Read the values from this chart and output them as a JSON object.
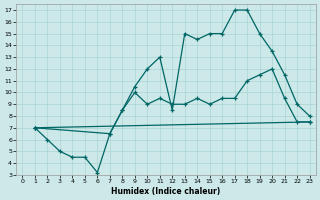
{
  "xlabel": "Humidex (Indice chaleur)",
  "xlim": [
    -0.5,
    23.5
  ],
  "ylim": [
    3,
    17.5
  ],
  "xticks": [
    0,
    1,
    2,
    3,
    4,
    5,
    6,
    7,
    8,
    9,
    10,
    11,
    12,
    13,
    14,
    15,
    16,
    17,
    18,
    19,
    20,
    21,
    22,
    23
  ],
  "yticks": [
    3,
    4,
    5,
    6,
    7,
    8,
    9,
    10,
    11,
    12,
    13,
    14,
    15,
    16,
    17
  ],
  "bg_color": "#cce8e8",
  "grid_color": "#aad4d4",
  "line_color": "#006666",
  "line1_x": [
    1,
    2,
    3,
    4,
    5,
    6,
    7,
    8,
    9,
    10,
    11,
    12,
    13,
    14,
    15,
    16,
    17,
    18,
    19,
    20,
    21,
    22,
    23
  ],
  "line1_y": [
    7.0,
    6.0,
    5.0,
    4.5,
    4.5,
    3.2,
    6.5,
    8.5,
    10.5,
    12.0,
    13.0,
    8.5,
    15.0,
    14.5,
    15.0,
    15.0,
    17.0,
    17.0,
    15.0,
    13.5,
    11.5,
    9.0,
    8.0
  ],
  "line2_x": [
    1,
    7,
    8,
    9,
    10,
    11,
    12,
    13,
    14,
    15,
    16,
    17,
    18,
    19,
    20,
    21,
    22,
    23
  ],
  "line2_y": [
    7.0,
    6.5,
    8.5,
    10.0,
    9.0,
    9.5,
    9.0,
    9.0,
    9.5,
    9.0,
    9.5,
    9.5,
    11.0,
    11.5,
    12.0,
    9.5,
    7.5,
    7.5
  ],
  "line3_x": [
    1,
    23
  ],
  "line3_y": [
    7.0,
    7.5
  ]
}
